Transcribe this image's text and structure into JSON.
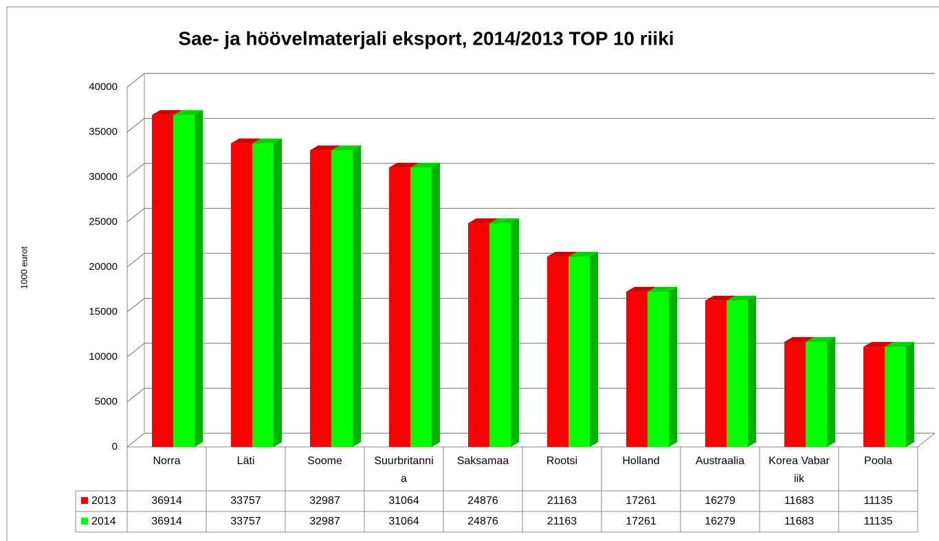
{
  "chart_data": {
    "type": "bar3d",
    "title": "Sae- ja höövelmaterjali eksport, 2014/2013 TOP 10 riiki",
    "y_label": "1000 eurot",
    "categories": [
      "Norra",
      "Läti",
      "Soome",
      "Suurbritannia",
      "Saksamaa",
      "Rootsi",
      "Holland",
      "Austraalia",
      "Korea Vabariik",
      "Poola"
    ],
    "series": [
      {
        "name": "2013",
        "color": "#ff0000",
        "values": [
          36914,
          33757,
          32987,
          31064,
          24876,
          21163,
          17261,
          16279,
          11683,
          11135
        ]
      },
      {
        "name": "2014",
        "color": "#00ff00",
        "values": [
          36914,
          33757,
          32987,
          31064,
          24876,
          21163,
          17261,
          16279,
          11683,
          11135
        ]
      }
    ],
    "ylim": [
      0,
      40000
    ],
    "yticks": [
      0,
      5000,
      10000,
      15000,
      20000,
      25000,
      30000,
      35000,
      40000
    ],
    "grid": true
  }
}
